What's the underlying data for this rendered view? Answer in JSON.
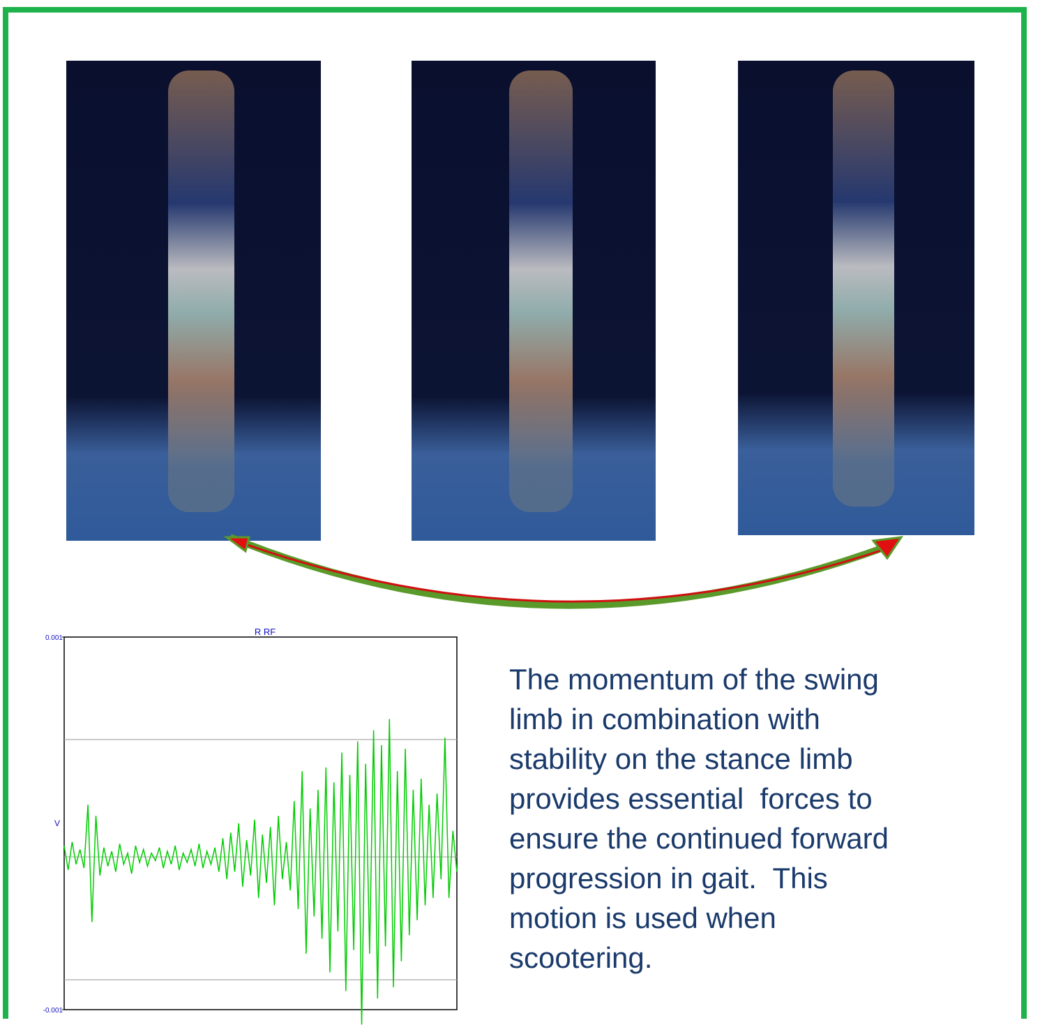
{
  "chart_data": {
    "type": "line",
    "title": "R RF",
    "ylabel": "V",
    "color": "#00cc00",
    "ylim": [
      -0.001,
      0.001
    ],
    "yticks": [
      -0.001,
      0.001
    ],
    "reference_lines": [
      0.00045,
      -0.00018,
      -0.00084
    ],
    "values": [
      -0.00012,
      -0.00025,
      -0.0001,
      -0.00022,
      -0.00014,
      -0.00024,
      0.0001,
      -0.00053,
      4e-05,
      -0.00028,
      -0.00013,
      -0.00023,
      -0.00015,
      -0.00026,
      -0.00011,
      -0.00022,
      -0.00016,
      -0.00027,
      -0.00012,
      -0.00021,
      -0.00014,
      -0.00023,
      -0.00016,
      -0.0002,
      -0.00013,
      -0.00024,
      -0.00015,
      -0.00022,
      -0.00012,
      -0.00025,
      -0.00016,
      -0.00021,
      -0.00014,
      -0.00023,
      -0.00011,
      -0.00024,
      -0.00015,
      -0.00022,
      -0.00013,
      -0.00026,
      -8e-05,
      -0.0003,
      -5e-05,
      -0.00026,
      0,
      -0.00034,
      -9e-05,
      -0.00028,
      2e-05,
      -0.0004,
      -6e-05,
      -0.00032,
      -2e-05,
      -0.00044,
      4e-05,
      -0.0003,
      -0.0001,
      -0.00036,
      0.00012,
      -0.00046,
      0.00028,
      -0.0007,
      8e-05,
      -0.0005,
      0.00018,
      -0.00062,
      0.0003,
      -0.0008,
      0.00022,
      -0.00058,
      0.00038,
      -0.0009,
      0.00026,
      -0.00068,
      0.00044,
      -0.00108,
      0.00032,
      -0.0007,
      0.0005,
      -0.00094,
      0.00042,
      -0.00066,
      0.00056,
      -0.00088,
      0.00028,
      -0.00074,
      0.0004,
      -0.0006,
      0.00018,
      -0.00052,
      0.00024,
      -0.00044,
      0.0001,
      -0.0004,
      0.00016,
      -0.0003,
      0.00046,
      -0.0004,
      -4e-05,
      -0.00026
    ]
  },
  "text": {
    "lines": [
      "The momentum of the swing",
      "limb in combination with",
      "stability on the stance limb",
      "provides essential  forces to",
      "ensure the continued forward",
      "progression in gait.  This",
      "motion is used when",
      "scootering."
    ]
  }
}
